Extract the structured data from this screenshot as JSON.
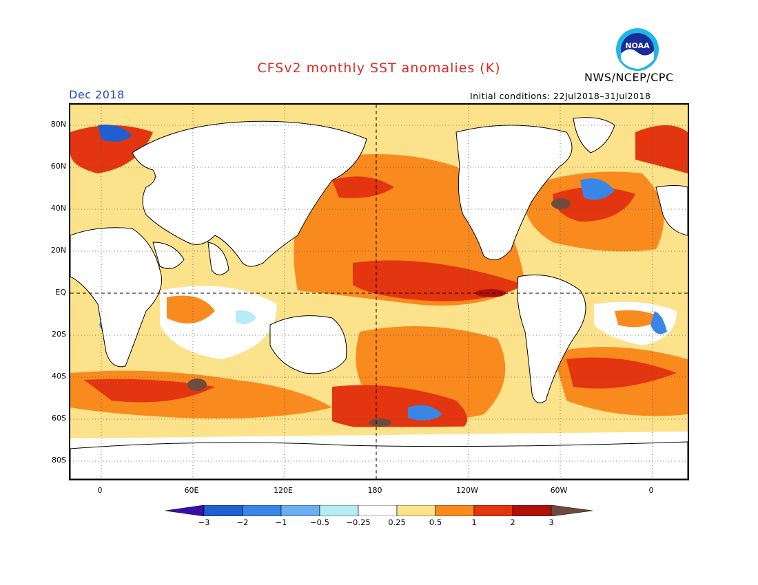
{
  "title": "CFSv2 monthly SST anomalies (K)",
  "agency": "NWS/NCEP/CPC",
  "logo_text": "NOAA",
  "month_label": "Dec 2018",
  "initial_conditions": "Initial conditions: 22Jul2018–31Jul2018",
  "lat_labels": [
    "80N",
    "60N",
    "40N",
    "20N",
    "EQ",
    "20S",
    "40S",
    "60S",
    "80S"
  ],
  "lon_labels": [
    "0",
    "60E",
    "120E",
    "180",
    "120W",
    "60W",
    "0"
  ],
  "colorbar": {
    "labels": [
      "−3",
      "−2",
      "−1",
      "−0.5",
      "−0.25",
      "0.25",
      "0.5",
      "1",
      "2",
      "3"
    ],
    "colors": [
      "#3a0fa8",
      "#1f5fcf",
      "#3a86e6",
      "#6ab0f0",
      "#b6ecf5",
      "#ffffff",
      "#fce28a",
      "#f98a1e",
      "#e3350f",
      "#b01008",
      "#6e4a3f"
    ]
  }
}
